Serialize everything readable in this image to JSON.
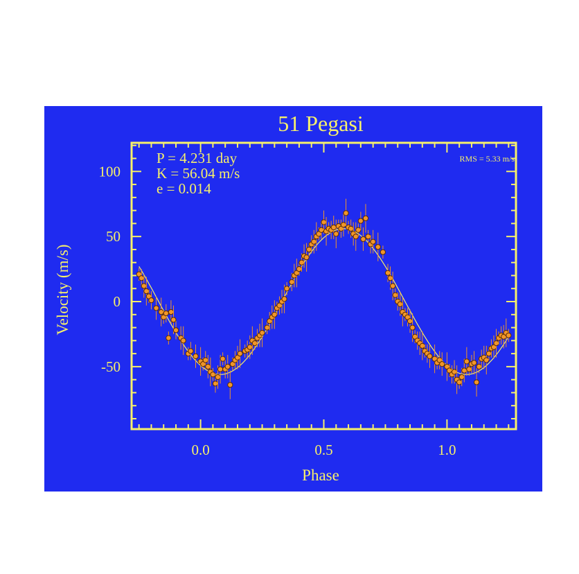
{
  "chart_data": {
    "type": "scatter",
    "title": "51 Pegasi",
    "xlabel": "Phase",
    "ylabel": "Velocity  (m/s)",
    "xlim": [
      -0.28,
      1.28
    ],
    "ylim": [
      -98,
      122
    ],
    "x_ticks": [
      0.0,
      0.5,
      1.0
    ],
    "x_tick_labels": [
      "0.0",
      "0.5",
      "1.0"
    ],
    "y_ticks": [
      100,
      50,
      0,
      -50
    ],
    "y_tick_labels": [
      "100",
      "50",
      "0",
      "-50"
    ],
    "annotations": [
      "P = 4.231 day",
      "K = 56.04 m/s",
      "e = 0.014"
    ],
    "rms_label": "RMS = 5.33 m/s",
    "grid": false,
    "colors": {
      "background": "#1f2bf0",
      "axes": "#f6f06b",
      "points": "#f0962a",
      "point_outline": "#5a2a00",
      "fit_line": "#f6f06b",
      "error_bars": "#f0962a"
    },
    "fit": {
      "K": 56.04,
      "phase_of_max": 0.58,
      "offset": 0
    },
    "series": [
      {
        "points": [
          [
            -0.25,
            21
          ],
          [
            -0.24,
            18
          ],
          [
            -0.23,
            12
          ],
          [
            -0.22,
            8
          ],
          [
            -0.21,
            4
          ],
          [
            -0.2,
            1
          ],
          [
            -0.18,
            -5
          ],
          [
            -0.16,
            -8
          ],
          [
            -0.15,
            -12
          ],
          [
            -0.14,
            -9
          ],
          [
            -0.12,
            -8
          ],
          [
            -0.11,
            -14
          ],
          [
            -0.13,
            -28
          ],
          [
            -0.1,
            -22
          ],
          [
            -0.08,
            -28
          ],
          [
            -0.07,
            -30
          ],
          [
            -0.05,
            -40
          ],
          [
            -0.04,
            -38
          ],
          [
            -0.02,
            -42
          ],
          [
            0.0,
            -46
          ],
          [
            0.01,
            -48
          ],
          [
            0.02,
            -45
          ],
          [
            0.03,
            -50
          ],
          [
            0.04,
            -54
          ],
          [
            0.05,
            -56
          ],
          [
            0.06,
            -63
          ],
          [
            0.07,
            -58
          ],
          [
            0.08,
            -52
          ],
          [
            0.09,
            -44
          ],
          [
            0.1,
            -52
          ],
          [
            0.11,
            -50
          ],
          [
            0.12,
            -64
          ],
          [
            0.13,
            -48
          ],
          [
            0.14,
            -45
          ],
          [
            0.15,
            -43
          ],
          [
            0.16,
            -40
          ],
          [
            0.18,
            -38
          ],
          [
            0.19,
            -37
          ],
          [
            0.2,
            -35
          ],
          [
            0.21,
            -30
          ],
          [
            0.22,
            -32
          ],
          [
            0.23,
            -28
          ],
          [
            0.24,
            -26
          ],
          [
            0.25,
            -24
          ],
          [
            0.27,
            -20
          ],
          [
            0.28,
            -15
          ],
          [
            0.29,
            -12
          ],
          [
            0.3,
            -10
          ],
          [
            0.31,
            -5
          ],
          [
            0.32,
            -3
          ],
          [
            0.33,
            0
          ],
          [
            0.34,
            2
          ],
          [
            0.35,
            10
          ],
          [
            0.37,
            15
          ],
          [
            0.38,
            20
          ],
          [
            0.39,
            22
          ],
          [
            0.4,
            25
          ],
          [
            0.41,
            30
          ],
          [
            0.42,
            35
          ],
          [
            0.43,
            34
          ],
          [
            0.44,
            40
          ],
          [
            0.45,
            44
          ],
          [
            0.46,
            46
          ],
          [
            0.47,
            50
          ],
          [
            0.48,
            52
          ],
          [
            0.49,
            55
          ],
          [
            0.5,
            61
          ],
          [
            0.51,
            54
          ],
          [
            0.52,
            56
          ],
          [
            0.53,
            55
          ],
          [
            0.54,
            57
          ],
          [
            0.55,
            52
          ],
          [
            0.56,
            58
          ],
          [
            0.57,
            56
          ],
          [
            0.58,
            59
          ],
          [
            0.59,
            68
          ],
          [
            0.6,
            57
          ],
          [
            0.61,
            56
          ],
          [
            0.62,
            52
          ],
          [
            0.63,
            50
          ],
          [
            0.64,
            55
          ],
          [
            0.65,
            62
          ],
          [
            0.66,
            48
          ],
          [
            0.67,
            64
          ],
          [
            0.68,
            50
          ],
          [
            0.69,
            44
          ],
          [
            0.7,
            46
          ],
          [
            0.72,
            42
          ],
          [
            0.74,
            38
          ],
          [
            0.76,
            22
          ],
          [
            0.77,
            18
          ],
          [
            0.78,
            12
          ],
          [
            0.79,
            5
          ],
          [
            0.8,
            0
          ],
          [
            0.81,
            -2
          ],
          [
            0.82,
            -8
          ],
          [
            0.83,
            -10
          ],
          [
            0.84,
            -12
          ],
          [
            0.85,
            -15
          ],
          [
            0.86,
            -20
          ],
          [
            0.87,
            -27
          ],
          [
            0.88,
            -30
          ],
          [
            0.89,
            -32
          ],
          [
            0.9,
            -34
          ],
          [
            0.91,
            -38
          ],
          [
            0.92,
            -40
          ],
          [
            0.93,
            -42
          ],
          [
            0.95,
            -44
          ],
          [
            0.96,
            -47
          ],
          [
            0.97,
            -45
          ],
          [
            0.98,
            -48
          ],
          [
            1.0,
            -50
          ],
          [
            1.01,
            -53
          ],
          [
            1.02,
            -56
          ],
          [
            1.03,
            -54
          ],
          [
            1.04,
            -60
          ],
          [
            1.05,
            -62
          ],
          [
            1.06,
            -58
          ],
          [
            1.07,
            -53
          ],
          [
            1.08,
            -46
          ],
          [
            1.09,
            -52
          ],
          [
            1.1,
            -48
          ],
          [
            1.11,
            -47
          ],
          [
            1.12,
            -62
          ],
          [
            1.13,
            -50
          ],
          [
            1.14,
            -44
          ],
          [
            1.15,
            -43
          ],
          [
            1.16,
            -45
          ],
          [
            1.17,
            -40
          ],
          [
            1.18,
            -36
          ],
          [
            1.19,
            -35
          ],
          [
            1.2,
            -32
          ],
          [
            1.21,
            -28
          ],
          [
            1.22,
            -26
          ],
          [
            1.23,
            -27
          ],
          [
            1.24,
            -24
          ],
          [
            1.25,
            -26
          ]
        ]
      }
    ]
  }
}
